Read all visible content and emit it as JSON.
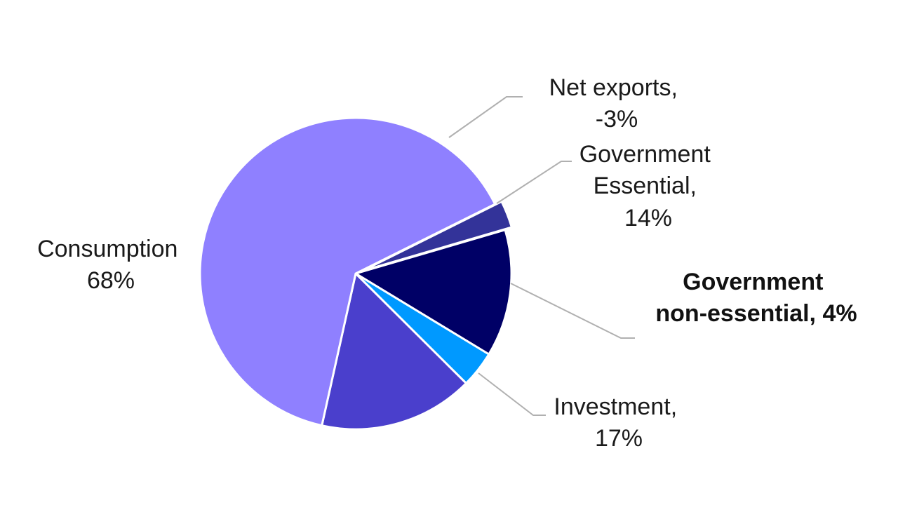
{
  "chart_data": {
    "type": "pie",
    "title": "",
    "slices": [
      {
        "name": "Net exports",
        "value": -3,
        "color": "#333399"
      },
      {
        "name": "Government Essential",
        "value": 14,
        "color": "#000066"
      },
      {
        "name": "Government non-essential",
        "value": 4,
        "color": "#0099ff"
      },
      {
        "name": "Investment",
        "value": 17,
        "color": "#4a3fcc"
      },
      {
        "name": "Consumption",
        "value": 68,
        "color": "#8f80ff"
      }
    ],
    "labels": {
      "net_exports": [
        "Net exports,",
        "-3%"
      ],
      "gov_essential": [
        "Government",
        "Essential,",
        "14%"
      ],
      "gov_nonessential": [
        "Government",
        "non-essential, 4%"
      ],
      "investment": [
        "Investment,",
        "17%"
      ],
      "consumption": [
        "Consumption",
        "68%"
      ]
    }
  }
}
